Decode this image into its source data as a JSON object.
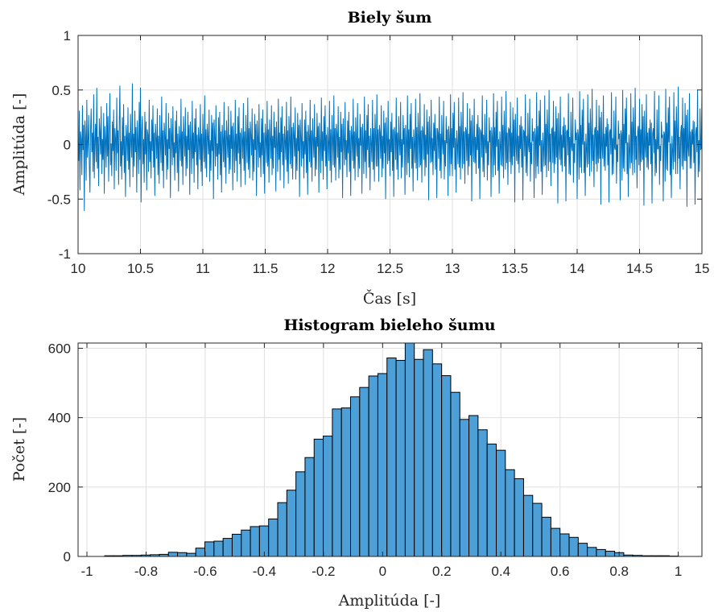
{
  "chart_data": [
    {
      "type": "line",
      "title": "Biely šum",
      "xlabel": "Čas [s]",
      "ylabel": "Amplitúda [-]",
      "xlim": [
        10,
        15
      ],
      "ylim": [
        -1,
        1
      ],
      "xticks": [
        "10",
        "10.5",
        "11",
        "11.5",
        "12",
        "12.5",
        "13",
        "13.5",
        "14",
        "14.5",
        "15"
      ],
      "yticks": [
        "-1",
        "-0.5",
        "0",
        "0.5",
        "1"
      ],
      "grid": true,
      "color": "#0072bd",
      "sample_interval": 0.005,
      "x_start": 10,
      "y": [
        0.02,
        -0.15,
        0.31,
        -0.42,
        0.12,
        0.05,
        -0.28,
        0.36,
        -0.05,
        0.18,
        -0.61,
        0.22,
        0.08,
        -0.33,
        0.41,
        -0.12,
        0.02,
        0.27,
        -0.18,
        -0.44,
        0.14,
        0.33,
        -0.07,
        0.11,
        -0.25,
        0.46,
        -0.31,
        0.03,
        0.19,
        -0.16,
        0.52,
        -0.22,
        0.07,
        -0.38,
        0.24,
        0.12,
        -0.09,
        0.35,
        -0.27,
        0.05,
        -0.14,
        0.29,
        -0.45,
        0.17,
        0.04,
        -0.21,
        0.38,
        -0.11,
        0.26,
        -0.34,
        0.09,
        0.47,
        -0.19,
        0.01,
        -0.29,
        0.21,
        -0.06,
        0.32,
        -0.41,
        0.15,
        0.06,
        -0.24,
        0.43,
        -0.08,
        0.13,
        -0.37,
        0.2,
        0.54,
        -0.2,
        0.03,
        -0.32,
        0.25,
        -0.1,
        0.37,
        -0.26,
        0.08,
        -0.48,
        0.18,
        0.07,
        -0.15,
        0.34,
        -0.23,
        0.11,
        -0.39,
        0.28,
        0.02,
        -0.12,
        0.56,
        -0.3,
        0.1,
        -0.2,
        0.31,
        -0.07,
        0.16,
        -0.44,
        0.22,
        0.04,
        -0.27,
        0.39,
        -0.14,
        0.52,
        -0.53,
        0.12,
        0.26,
        -0.18,
        0.05,
        -0.35,
        0.3,
        -0.09,
        0.21,
        -0.42,
        0.14,
        0.09,
        -0.25,
        0.41,
        -0.16,
        0.03,
        -0.31,
        0.23,
        -0.06,
        0.36,
        -0.21,
        0.11,
        -0.47,
        0.19,
        0.06,
        -0.13,
        0.33,
        -0.28,
        0.08,
        -0.36,
        0.27,
        0.01,
        -0.17,
        0.44,
        -0.24,
        0.13,
        -0.4,
        0.2,
        0.07,
        -0.1,
        0.38,
        -0.32,
        0.05,
        -0.23,
        0.29,
        -0.04,
        0.15,
        -0.49,
        0.24,
        0.09,
        -0.19,
        0.35,
        -0.12,
        0.02,
        -0.33,
        0.22,
        -0.08,
        0.31,
        -0.26,
        0.1,
        -0.43,
        0.17,
        0.04,
        -0.15,
        0.42,
        -0.2,
        0.12,
        -0.37,
        0.26,
        0.06,
        -0.11,
        0.34,
        -0.29,
        0.08,
        -0.22,
        0.3,
        -0.05,
        0.18,
        -0.46,
        0.21,
        0.03,
        -0.27,
        0.4,
        -0.13,
        0.11,
        -0.35,
        0.24,
        -0.07,
        0.33,
        -0.19,
        0.09,
        -0.41,
        0.16,
        0.05,
        -0.14,
        0.37,
        -0.25,
        0.1,
        -0.38,
        0.28,
        0.02,
        -0.16,
        0.45,
        -0.22,
        0.14,
        -0.3,
        0.19,
        0.07,
        -0.09,
        0.32,
        -0.34,
        0.04,
        -0.24,
        0.27,
        -0.06,
        0.2,
        -0.5,
        0.23,
        0.08,
        -0.2,
        0.36,
        -0.11,
        0.01,
        -0.32,
        0.25,
        -0.09,
        0.3,
        -0.28,
        0.12,
        -0.44,
        0.18,
        0.05,
        -0.16,
        0.39,
        -0.21,
        0.13,
        -0.36,
        0.22,
        0.06,
        -0.12,
        0.35,
        -0.27,
        0.09,
        -0.23,
        0.31,
        -0.04,
        0.17,
        -0.42,
        0.2,
        0.02,
        -0.26,
        0.41,
        -0.15,
        0.1,
        -0.34,
        0.26,
        -0.08,
        0.34,
        -0.18,
        0.11,
        -0.39,
        0.15,
        0.04,
        -0.13,
        0.38,
        -0.24,
        0.12,
        -0.37,
        0.27,
        0.03,
        -0.17,
        0.43,
        -0.23,
        0.15,
        -0.31,
        0.21,
        0.08,
        -0.1,
        0.33,
        -0.33,
        0.05,
        -0.25,
        0.28,
        -0.05,
        0.19,
        -0.47,
        0.22,
        0.07,
        -0.21,
        0.37,
        -0.12,
        0.02,
        -0.3,
        0.24,
        -0.1,
        0.32,
        -0.27,
        0.11,
        -0.45,
        0.19,
        0.06,
        -0.17,
        0.4,
        -0.2,
        0.14,
        -0.35,
        0.23,
        0.05,
        -0.13,
        0.36,
        -0.28,
        0.08,
        -0.22,
        0.3,
        -0.03,
        0.16,
        -0.43,
        0.21,
        0.01,
        -0.25,
        0.42,
        -0.14,
        0.11,
        -0.33,
        0.25,
        -0.07,
        0.35,
        -0.19,
        0.1,
        -0.4,
        0.17,
        0.03,
        -0.14,
        0.39,
        -0.25,
        0.13,
        -0.36,
        0.26,
        0.04,
        -0.18,
        0.44,
        -0.22,
        0.16,
        -0.32,
        0.2,
        0.09,
        -0.11,
        0.34,
        -0.32,
        0.06,
        -0.24,
        0.29,
        -0.06,
        0.18,
        -0.48,
        0.23,
        0.06,
        -0.2,
        0.38,
        -0.13,
        0.03,
        -0.31,
        0.23,
        -0.09,
        0.31,
        -0.26,
        0.12,
        -0.46,
        0.18,
        0.07,
        -0.16,
        0.41,
        -0.21,
        0.13,
        -0.34,
        0.24,
        0.04,
        -0.12,
        0.37,
        -0.29,
        0.07,
        -0.23,
        0.29,
        -0.02,
        0.17,
        -0.44,
        0.2,
        0.02,
        -0.26,
        0.43,
        -0.15,
        0.12,
        -0.32,
        0.26,
        -0.06,
        0.36,
        -0.2,
        0.09,
        -0.41,
        0.16,
        0.02,
        -0.15,
        0.4,
        -0.24,
        0.14,
        -0.35,
        0.27,
        0.05,
        -0.19,
        0.45,
        -0.21,
        0.15,
        -0.33,
        0.19,
        0.1,
        -0.12,
        0.35,
        -0.31,
        0.07,
        -0.23,
        0.3,
        -0.07,
        0.19,
        -0.49,
        0.24,
        0.05,
        -0.19,
        0.39,
        -0.14,
        0.04,
        -0.3,
        0.22,
        -0.08,
        0.3,
        -0.25,
        0.13,
        -0.47,
        0.17,
        0.08,
        -0.15,
        0.42,
        -0.22,
        0.12,
        -0.33,
        0.25,
        0.03,
        -0.11,
        0.38,
        -0.3,
        0.06,
        -0.22,
        0.28,
        -0.01,
        0.16,
        -0.45,
        0.19,
        0.03,
        -0.27,
        0.44,
        -0.16,
        0.13,
        -0.31,
        0.27,
        -0.05,
        0.37,
        -0.21,
        0.08,
        -0.42,
        0.15,
        0.01,
        -0.16,
        0.41,
        -0.23,
        0.15,
        -0.34,
        0.28,
        0.06,
        -0.2,
        0.46,
        -0.2,
        0.14,
        -0.34,
        0.18,
        0.11,
        -0.13,
        0.36,
        -0.3,
        0.08,
        -0.22,
        0.31,
        -0.08,
        0.2,
        -0.5,
        0.25,
        0.04,
        -0.18,
        0.4,
        -0.15,
        0.05,
        -0.29,
        0.21,
        -0.07,
        0.29,
        -0.24,
        0.14,
        -0.48,
        0.16,
        0.09,
        -0.14,
        0.43,
        -0.23,
        0.11,
        -0.32,
        0.26,
        0.02,
        -0.1,
        0.39,
        -0.31,
        0.05,
        -0.21,
        0.27,
        0,
        0.15,
        -0.46,
        0.18,
        0.04,
        -0.28,
        0.45,
        -0.17,
        0.14,
        -0.3,
        0.28,
        -0.04,
        0.38,
        -0.22,
        0.07,
        -0.43,
        0.14,
        0,
        -0.17,
        0.42,
        -0.22,
        0.16,
        -0.33,
        0.29,
        0.07,
        -0.21,
        0.47,
        -0.19,
        0.13,
        -0.35,
        0.17,
        0.12,
        -0.14,
        0.37,
        -0.29,
        0.09,
        -0.21,
        0.32,
        -0.09,
        0.21,
        -0.51,
        0.26,
        0.03,
        -0.17,
        0.41,
        -0.16,
        0.06,
        -0.28,
        0.2,
        -0.06,
        0.28,
        -0.23,
        0.15,
        -0.49,
        0.15,
        0.1,
        -0.13,
        0.44,
        -0.24,
        0.1,
        -0.31,
        0.27,
        0.01,
        -0.09,
        0.4,
        -0.32,
        0.04,
        -0.2,
        0.26,
        0.01,
        0.14,
        -0.47,
        0.17,
        0.05,
        -0.29,
        0.46,
        -0.18,
        0.15,
        -0.29,
        0.29,
        -0.03,
        0.39,
        -0.23,
        0.06,
        -0.44,
        0.13,
        -0.01,
        -0.18,
        0.43,
        -0.21,
        0.17,
        -0.32,
        0.3,
        0.08,
        -0.22,
        0.48,
        -0.18,
        0.12,
        -0.36,
        0.16,
        0.13,
        -0.15,
        0.38,
        -0.28,
        0.1,
        -0.2,
        0.33,
        -0.1,
        0.22,
        -0.52,
        0.27,
        0.02,
        -0.16,
        0.42,
        -0.17,
        0.07,
        -0.27,
        0.19,
        -0.05,
        0.27,
        -0.22,
        0.16,
        -0.5,
        0.14,
        0.11,
        -0.12,
        0.45,
        -0.25,
        0.09,
        -0.3,
        0.28,
        0,
        -0.08,
        0.41,
        -0.33,
        0.03,
        -0.19,
        0.25,
        0.02,
        0.13,
        -0.48,
        0.16,
        0.06,
        -0.3,
        0.47,
        -0.19,
        0.16,
        -0.28,
        0.3,
        -0.02,
        0.4,
        -0.24,
        0.05,
        -0.45,
        0.12,
        -0.02,
        -0.19,
        0.44,
        -0.2,
        0.18,
        -0.31,
        0.31,
        0.09,
        -0.23,
        0.49,
        -0.17,
        0.11,
        -0.37,
        0.15,
        0.14,
        -0.16,
        0.39,
        -0.27,
        0.11,
        -0.19,
        0.34,
        -0.11,
        0.23,
        -0.53,
        0.28,
        0.01,
        -0.15,
        0.43,
        -0.18,
        0.08,
        -0.26,
        0.18,
        -0.04,
        0.26,
        -0.21,
        0.17,
        -0.51,
        0.13,
        0.12,
        -0.11,
        0.46,
        -0.26,
        0.08,
        -0.29,
        0.29,
        -0.01,
        -0.07,
        0.42,
        -0.34,
        0.02,
        -0.18,
        0.24,
        0.03,
        0.12,
        -0.49,
        0.15,
        0.07,
        -0.31,
        0.48,
        -0.2,
        0.17,
        -0.27,
        0.31,
        -0.01,
        0.41,
        -0.25,
        0.04,
        -0.46,
        0.11,
        -0.03,
        -0.2,
        0.45,
        -0.19,
        0.19,
        -0.3,
        0.32,
        0.1,
        -0.24,
        0.5,
        -0.16,
        0.1,
        -0.38,
        0.14,
        0.15,
        -0.17,
        0.4,
        -0.26,
        0.12,
        -0.18,
        0.35,
        -0.12,
        0.24,
        -0.54,
        0.29,
        0,
        -0.14,
        0.44,
        -0.19,
        0.09,
        -0.25,
        0.17,
        -0.03,
        0.25,
        -0.2,
        0.18,
        -0.52,
        0.12,
        0.13,
        -0.1,
        0.47,
        -0.27,
        0.07,
        -0.28,
        0.3,
        -0.02,
        -0.06,
        0.43,
        -0.35,
        0.01,
        -0.17,
        0.23,
        0.04,
        0.11,
        -0.5,
        0.14,
        0.08,
        -0.32,
        0.49,
        -0.21,
        0.18,
        -0.26,
        0.32,
        0,
        0.42,
        -0.26,
        0.03,
        -0.47,
        0.1,
        -0.04,
        -0.21,
        0.46,
        -0.18,
        0.2,
        -0.29,
        0.33,
        0.11,
        -0.25,
        0.51,
        -0.15,
        0.09,
        -0.39,
        0.13,
        0.16,
        -0.18,
        0.41,
        -0.25,
        0.13,
        -0.17,
        0.36,
        -0.13,
        0.25,
        -0.55,
        0.3,
        -0.01,
        -0.13,
        0.45,
        -0.2,
        0.1,
        -0.24,
        0.16,
        -0.02,
        0.24,
        -0.19,
        0.19,
        -0.53,
        0.11,
        0.14,
        -0.09,
        0.48,
        -0.28,
        0.06,
        -0.27,
        0.31,
        -0.03,
        -0.05,
        0.44,
        -0.36,
        0,
        -0.16,
        0.22,
        0.05,
        0.1,
        -0.51,
        0.13,
        0.09,
        -0.33,
        0.5,
        -0.22,
        0.19,
        -0.25,
        0.33,
        0.01,
        0.43,
        -0.27,
        0.02,
        -0.48,
        0.09,
        -0.05,
        -0.22,
        0.47,
        -0.17,
        0.21,
        -0.28,
        0.34,
        0.12,
        -0.26,
        0.52,
        -0.14,
        0.08,
        -0.4,
        0.12,
        0.17,
        -0.19,
        0.42,
        -0.24,
        0.14,
        -0.16,
        0.37,
        -0.14,
        0.26,
        -0.56,
        0.31,
        -0.02,
        -0.12,
        0.46,
        -0.21,
        0.11,
        -0.23,
        0.15,
        -0.01,
        0.23,
        -0.18,
        0.2,
        -0.54,
        0.1,
        0.15,
        -0.08,
        0.49,
        -0.29,
        0.05,
        -0.26,
        0.32,
        -0.04,
        -0.04,
        0.45,
        -0.37,
        -0.01,
        -0.15,
        0.21,
        0.06,
        0.09,
        -0.52,
        0.12,
        0.1,
        -0.34,
        0.51,
        -0.23,
        0.2,
        -0.24,
        0.34,
        0.02,
        0.44,
        -0.28,
        0.01,
        -0.49,
        0.08,
        -0.06,
        -0.23,
        0.48,
        -0.16,
        0.22,
        -0.27,
        0.35,
        0.13,
        -0.27,
        0.53,
        -0.13,
        0.07,
        -0.41,
        0.11,
        0.18,
        -0.2,
        0.43,
        -0.23,
        0.15,
        -0.15,
        0.38,
        -0.15,
        0.27,
        -0.57,
        0.32,
        -0.03,
        -0.11,
        0.47,
        -0.22,
        0.12,
        -0.22,
        0.14,
        0,
        0.22,
        -0.17,
        0.21,
        -0.55,
        0.09,
        0.16,
        -0.07,
        0.5,
        -0.3,
        0.04,
        -0.25,
        0.33,
        -0.05,
        -0.03,
        0.46,
        -0.38,
        -0.02,
        -0.14,
        0.2,
        0.07,
        0.08,
        -0.53,
        0.11,
        0.11,
        -0.35,
        0.52,
        -0.24,
        0.21,
        -0.23,
        0.35,
        0.03,
        0.45,
        -0.29,
        0,
        -0.5,
        0.07,
        -0.07,
        -0.24,
        0.49,
        -0.15,
        0.23,
        -0.26,
        0.36,
        0.14,
        -0.28,
        0.54,
        -0.12,
        0.06,
        -0.42,
        0.1,
        0.19,
        -0.21,
        0.44,
        -0.22,
        0.16,
        -0.14,
        0.39,
        -0.16,
        0.28,
        -0.58,
        0.33,
        -0.04,
        -0.1,
        0.48,
        -0.23,
        0.13,
        -0.21,
        0.13,
        0.01,
        0.21,
        -0.16,
        0.22,
        -0.56,
        0.08,
        0.17,
        -0.06,
        0.51,
        -0.31,
        0.03,
        -0.24,
        0.34,
        -0.06,
        -0.02,
        0.47,
        -0.39,
        -0.03,
        -0.13,
        0.19,
        0.08,
        0.07,
        -0.54,
        0.1,
        0.12,
        -0.36,
        0.53,
        -0.25,
        0.22,
        -0.22,
        0.36,
        0.04,
        0.46,
        -0.3,
        -0.01,
        -0.51,
        0.06,
        -0.08,
        -0.25,
        0.5,
        -0.14,
        0.24,
        -0.25,
        0.37,
        0.15,
        -0.29,
        0.55,
        -0.11,
        0.05,
        -0.43,
        0.09,
        0.2,
        -0.22,
        0.45,
        -0.21,
        0.17,
        -0.13,
        0.4,
        -0.17,
        0.29,
        -0.59,
        0.34,
        -0.05,
        -0.09,
        0.49,
        -0.24,
        0.14,
        -0.2,
        0.12,
        0.02,
        0.2,
        -0.15,
        0.23,
        -0.57,
        0.07,
        0.18,
        -0.05,
        0.52,
        -0.32,
        0.02,
        -0.23,
        0.35,
        -0.07,
        -0.01,
        0.48,
        -0.4,
        -0.04,
        -0.12,
        0.18,
        0.09,
        0.06,
        -0.55,
        0.09,
        0.13,
        -0.37,
        0.54,
        -0.26,
        0.23,
        -0.21,
        0.37,
        0.05,
        0.47,
        -0.31,
        -0.02,
        -0.52,
        0.05,
        -0.09,
        -0.26,
        0.51,
        -0.13,
        0.25,
        -0.24,
        0.38,
        0.16,
        -0.3,
        0.56,
        -0.1,
        0.04,
        -0.44,
        0.08,
        0.21,
        -0.23,
        0.46,
        -0.2,
        0.18,
        -0.12,
        0.41,
        -0.18,
        0.3,
        -0.6,
        0.35,
        -0.06,
        -0.08,
        0.5,
        -0.25,
        0.15,
        -0.19,
        0.11,
        0.03,
        0.19,
        -0.14,
        0.24,
        -0.58,
        0.06,
        0.19,
        -0.04,
        0.53,
        -0.33,
        0.01,
        -0.22,
        0.36,
        -0.08,
        0
      ]
    },
    {
      "type": "histogram",
      "title": "Histogram bieleho šumu",
      "xlabel": "Amplitúda [-]",
      "ylabel": "Počet [-]",
      "xlim": [
        -1.03,
        1.08
      ],
      "ylim": [
        0,
        615
      ],
      "xticks": [
        "-1",
        "-0.8",
        "-0.6",
        "-0.4",
        "-0.2",
        "0",
        "0.2",
        "0.4",
        "0.6",
        "0.8",
        "1"
      ],
      "yticks": [
        "0",
        "200",
        "400",
        "600"
      ],
      "grid": true,
      "color": "#4d9fd8",
      "edgecolor": "#000000",
      "bin_start": -0.94,
      "bin_width": 0.0308,
      "counts": [
        2,
        2,
        3,
        3,
        4,
        5,
        6,
        12,
        11,
        9,
        24,
        42,
        44,
        52,
        64,
        76,
        86,
        88,
        108,
        155,
        191,
        244,
        285,
        338,
        347,
        425,
        428,
        460,
        487,
        520,
        527,
        572,
        565,
        615,
        568,
        596,
        555,
        521,
        473,
        395,
        406,
        365,
        324,
        306,
        250,
        224,
        176,
        153,
        113,
        81,
        65,
        55,
        38,
        26,
        20,
        15,
        11,
        4,
        3,
        2,
        2,
        2,
        1
      ]
    }
  ]
}
